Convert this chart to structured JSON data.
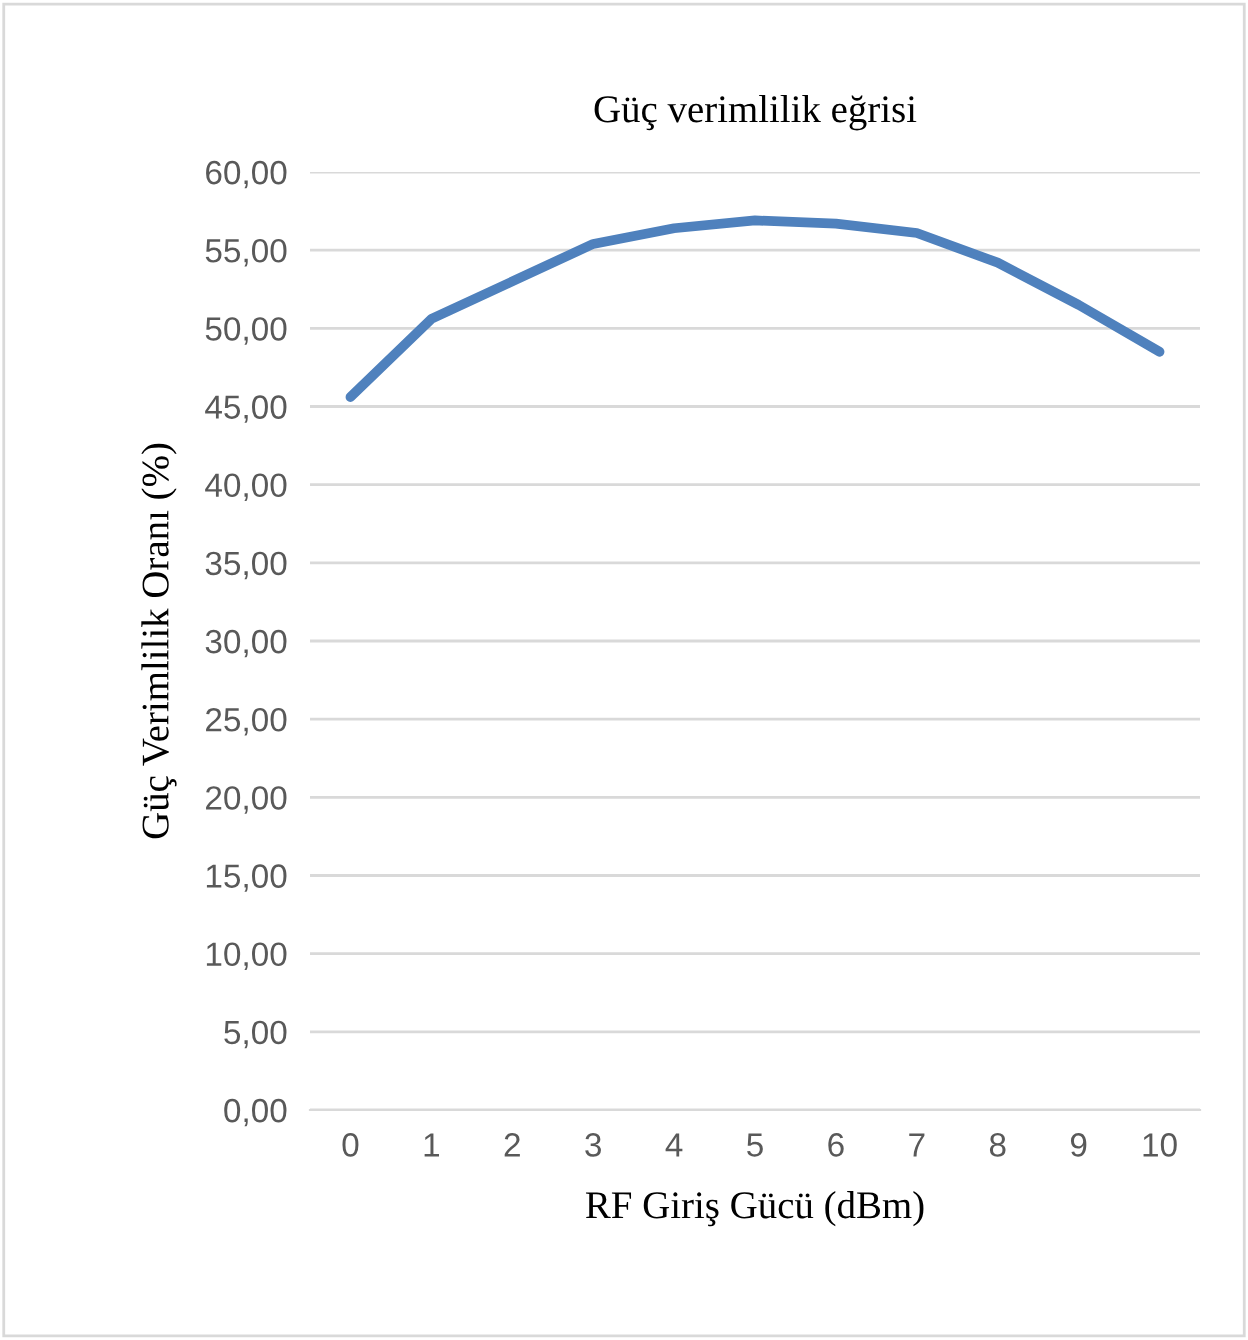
{
  "chart_data": {
    "type": "line",
    "title": "Güç verimlilik eğrisi",
    "xlabel": "RF Giriş Gücü (dBm)",
    "ylabel": "Güç Verimlilik Oranı (%)",
    "categories": [
      "0",
      "1",
      "2",
      "3",
      "4",
      "5",
      "6",
      "7",
      "8",
      "9",
      "10"
    ],
    "series": [
      {
        "color": "#4f81bd",
        "values": [
          45.6,
          50.6,
          53.0,
          55.4,
          56.4,
          56.9,
          56.7,
          56.1,
          54.2,
          51.5,
          48.5
        ]
      }
    ],
    "ylim": [
      0,
      60
    ],
    "yticks": [
      {
        "value": 0,
        "label": "0,00"
      },
      {
        "value": 5,
        "label": "5,00"
      },
      {
        "value": 10,
        "label": "10,00"
      },
      {
        "value": 15,
        "label": "15,00"
      },
      {
        "value": 20,
        "label": "20,00"
      },
      {
        "value": 25,
        "label": "25,00"
      },
      {
        "value": 30,
        "label": "30,00"
      },
      {
        "value": 35,
        "label": "35,00"
      },
      {
        "value": 40,
        "label": "40,00"
      },
      {
        "value": 45,
        "label": "45,00"
      },
      {
        "value": 50,
        "label": "50,00"
      },
      {
        "value": 55,
        "label": "55,00"
      },
      {
        "value": 60,
        "label": "60,00"
      }
    ],
    "grid": "y",
    "legend": false,
    "marker": "none",
    "line_style": "solid"
  }
}
